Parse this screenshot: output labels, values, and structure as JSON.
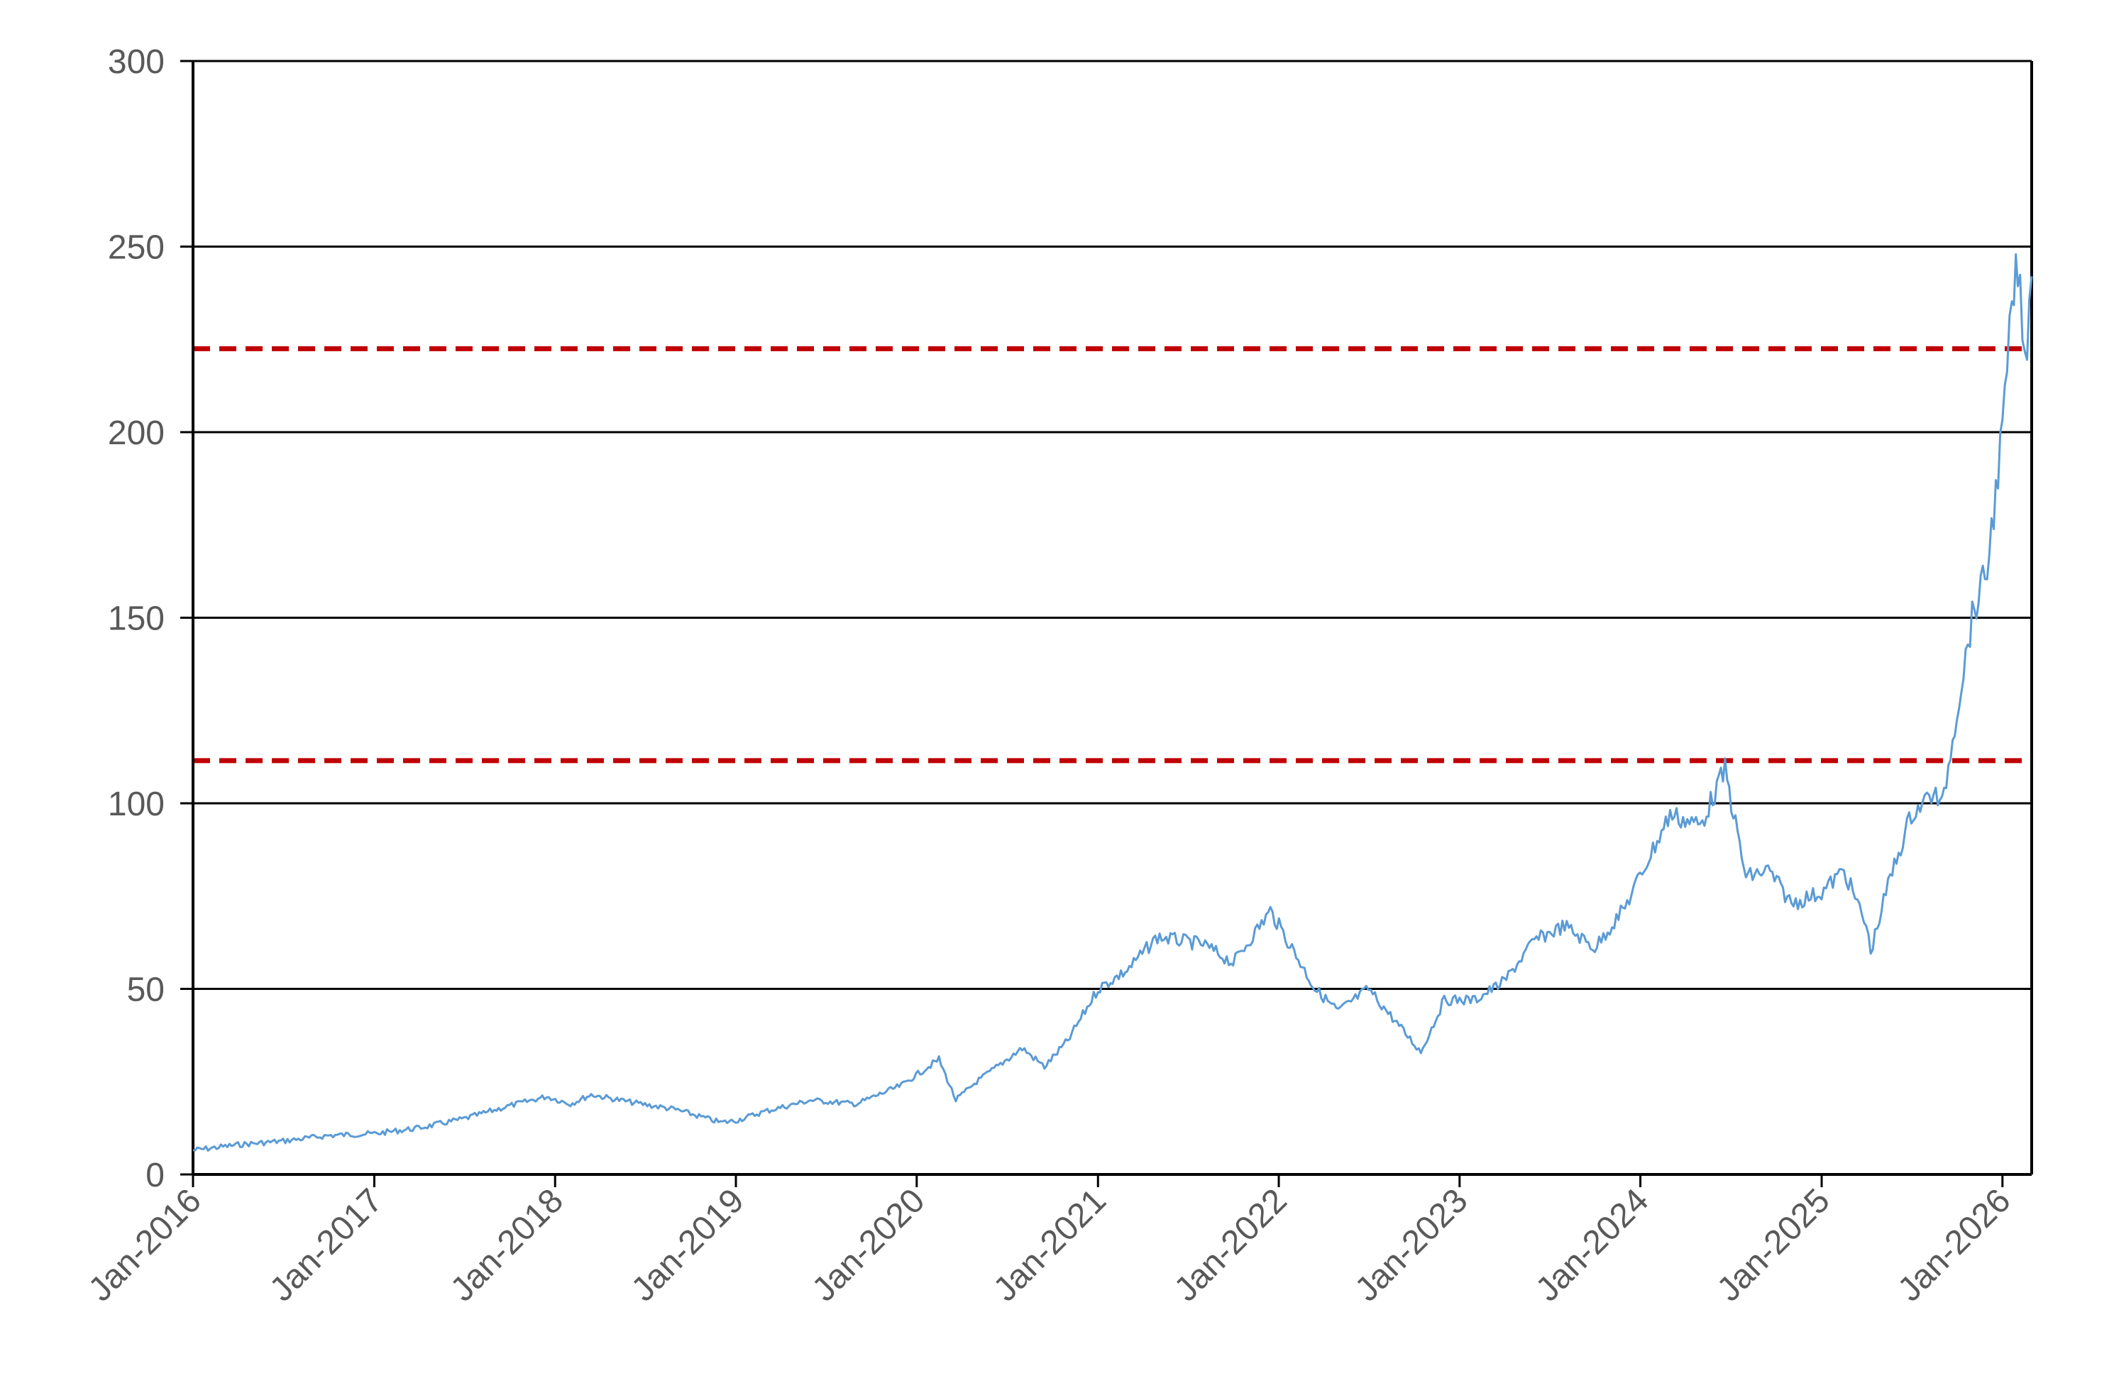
{
  "chart_data": {
    "type": "line",
    "title": "",
    "xlabel": "",
    "ylabel": "",
    "xlim": [
      "2016-01-01",
      "2026-03-01"
    ],
    "ylim": [
      0,
      300
    ],
    "grid": "horizontal",
    "legend": "none",
    "y_ticks": [
      0,
      50,
      100,
      150,
      200,
      250,
      300
    ],
    "y_tick_labels": [
      "0",
      "50",
      "100",
      "150",
      "200",
      "250",
      "300"
    ],
    "x_ticks": [
      "2016-01-01",
      "2017-01-01",
      "2018-01-01",
      "2019-01-01",
      "2020-01-01",
      "2021-01-01",
      "2022-01-01",
      "2023-01-01",
      "2024-01-01",
      "2025-01-01",
      "2026-01-01"
    ],
    "x_tick_labels": [
      "Jan-2016",
      "Jan-2017",
      "Jan-2018",
      "Jan-2019",
      "Jan-2020",
      "Jan-2021",
      "Jan-2022",
      "Jan-2023",
      "Jan-2024",
      "Jan-2025",
      "Jan-2026"
    ],
    "series": [
      {
        "color": "#5b9bd5",
        "points": [
          [
            "2016-01-01",
            6.5
          ],
          [
            "2016-04-01",
            8
          ],
          [
            "2016-07-01",
            9
          ],
          [
            "2016-10-01",
            10.5
          ],
          [
            "2017-01-01",
            11
          ],
          [
            "2017-04-01",
            12.5
          ],
          [
            "2017-07-01",
            15
          ],
          [
            "2017-10-01",
            18.5
          ],
          [
            "2017-12-15",
            21
          ],
          [
            "2018-02-01",
            19
          ],
          [
            "2018-03-15",
            21.5
          ],
          [
            "2018-06-01",
            19.5
          ],
          [
            "2018-09-01",
            17.5
          ],
          [
            "2018-12-01",
            14
          ],
          [
            "2019-01-01",
            14.5
          ],
          [
            "2019-03-01",
            17
          ],
          [
            "2019-06-01",
            20
          ],
          [
            "2019-09-01",
            19
          ],
          [
            "2019-12-01",
            24
          ],
          [
            "2020-02-15",
            31
          ],
          [
            "2020-03-20",
            20
          ],
          [
            "2020-05-01",
            25
          ],
          [
            "2020-08-01",
            34
          ],
          [
            "2020-09-15",
            29
          ],
          [
            "2020-11-01",
            36
          ],
          [
            "2021-01-01",
            50
          ],
          [
            "2021-03-01",
            55
          ],
          [
            "2021-05-01",
            64
          ],
          [
            "2021-08-01",
            62
          ],
          [
            "2021-10-01",
            57
          ],
          [
            "2021-12-15",
            71
          ],
          [
            "2022-02-01",
            60
          ],
          [
            "2022-03-15",
            50
          ],
          [
            "2022-05-01",
            44
          ],
          [
            "2022-07-01",
            50
          ],
          [
            "2022-09-01",
            40
          ],
          [
            "2022-10-15",
            33
          ],
          [
            "2022-12-01",
            47
          ],
          [
            "2023-02-01",
            47
          ],
          [
            "2023-04-01",
            52
          ],
          [
            "2023-06-01",
            63
          ],
          [
            "2023-08-01",
            67
          ],
          [
            "2023-10-01",
            61
          ],
          [
            "2023-12-01",
            72
          ],
          [
            "2024-03-01",
            97
          ],
          [
            "2024-05-01",
            94
          ],
          [
            "2024-06-20",
            109
          ],
          [
            "2024-08-01",
            80
          ],
          [
            "2024-09-15",
            82
          ],
          [
            "2024-11-01",
            73
          ],
          [
            "2025-01-01",
            76
          ],
          [
            "2025-02-15",
            82
          ],
          [
            "2025-04-01",
            67
          ],
          [
            "2025-04-10",
            60
          ],
          [
            "2025-05-15",
            78
          ],
          [
            "2025-07-01",
            97
          ],
          [
            "2025-08-15",
            103
          ],
          [
            "2025-09-01",
            99
          ],
          [
            "2025-10-01",
            125
          ],
          [
            "2025-11-01",
            150
          ],
          [
            "2025-12-01",
            163
          ],
          [
            "2026-01-01",
            200
          ],
          [
            "2026-01-20",
            233
          ],
          [
            "2026-02-01",
            245
          ],
          [
            "2026-02-15",
            218
          ],
          [
            "2026-03-01",
            242
          ]
        ]
      }
    ],
    "reference_lines": [
      {
        "y": 222.5,
        "color": "#c00000",
        "style": "dashed"
      },
      {
        "y": 111.5,
        "color": "#c00000",
        "style": "dashed"
      }
    ]
  }
}
